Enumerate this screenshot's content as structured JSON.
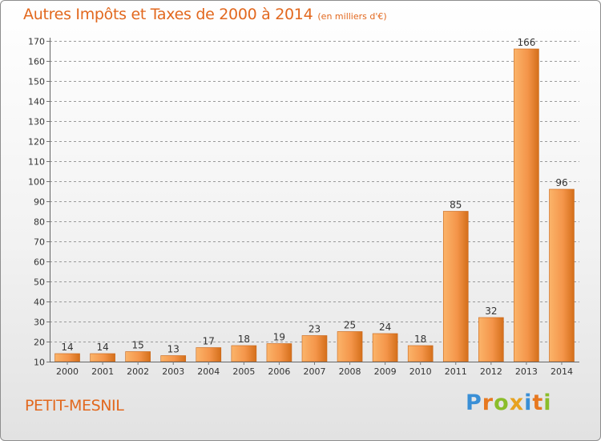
{
  "header": {
    "title": "Autres Impôts et Taxes de 2000 à 2014",
    "unit": "(en milliers d'€)"
  },
  "footer": {
    "city": "PETIT-MESNIL",
    "logo_letters": [
      "P",
      "r",
      "o",
      "x",
      "i",
      "t",
      "i"
    ]
  },
  "colors": {
    "accent": "#e2681e",
    "bar_light": "#f9a85a",
    "bar_dark": "#d9721a",
    "grid": "#9a9a9a"
  },
  "chart_data": {
    "type": "bar",
    "title": "Autres Impôts et Taxes de 2000 à 2014",
    "subtitle": "(en milliers d'€)",
    "xlabel": "",
    "ylabel": "",
    "categories": [
      "2000",
      "2001",
      "2002",
      "2003",
      "2004",
      "2005",
      "2006",
      "2007",
      "2008",
      "2009",
      "2010",
      "2011",
      "2012",
      "2013",
      "2014"
    ],
    "values": [
      14,
      14,
      15,
      13,
      17,
      18,
      19,
      23,
      25,
      24,
      18,
      85,
      32,
      166,
      96
    ],
    "ylim": [
      10,
      170
    ],
    "yticks": [
      10,
      20,
      30,
      40,
      50,
      60,
      70,
      80,
      90,
      100,
      110,
      120,
      130,
      140,
      150,
      160,
      170
    ],
    "grid": "horizontal-dashed",
    "legend": "none"
  }
}
